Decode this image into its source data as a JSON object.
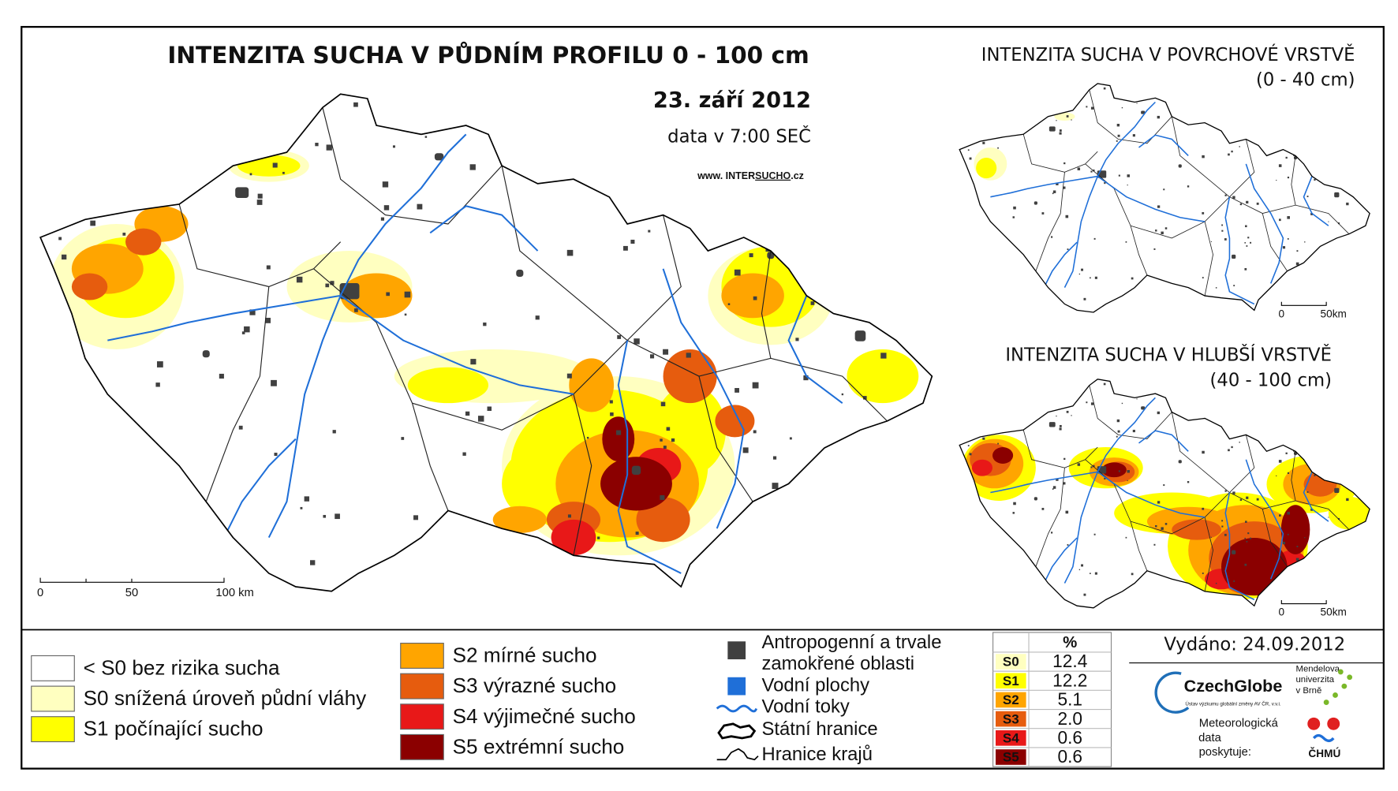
{
  "main_map": {
    "title": "INTENZITA SUCHA V PŮDNÍM PROFILU 0 - 100 cm",
    "date": "23. září 2012",
    "time": "data v 7:00 SEČ",
    "url": [
      "www. INTER",
      "SUCHO",
      ".cz"
    ],
    "scale": [
      "0",
      "50",
      "100 km"
    ]
  },
  "inset_top": {
    "title": "INTENZITA SUCHA V POVRCHOVÉ VRSTVĚ",
    "subtitle": "(0 - 40 cm)",
    "scale": [
      "0",
      "50km"
    ]
  },
  "inset_bottom": {
    "title": "INTENZITA SUCHA V HLUBŠÍ VRSTVĚ",
    "subtitle": "(40 - 100 cm)",
    "scale": [
      "0",
      "50km"
    ]
  },
  "legend": {
    "classes": [
      {
        "label": "< S0 bez rizika sucha",
        "color": "#ffffff"
      },
      {
        "label": "S0 snížená úroveň půdní vláhy",
        "color": "#ffffc0"
      },
      {
        "label": "S1 počínající sucho",
        "color": "#ffff00"
      },
      {
        "label": "S2 mírné sucho",
        "color": "#ffa500"
      },
      {
        "label": "S3 výrazné sucho",
        "color": "#e65c0e"
      },
      {
        "label": "S4 výjimečné sucho",
        "color": "#e81818"
      },
      {
        "label": "S5 extrémní sucho",
        "color": "#8b0000"
      }
    ],
    "symbols": [
      [
        "Antropogenní a trvale",
        "zamokřené oblasti"
      ],
      [
        "Vodní plochy"
      ],
      [
        "Vodní toky"
      ],
      [
        "Státní hranice"
      ],
      [
        "Hranice krajů"
      ]
    ]
  },
  "stats_table": {
    "header": "%",
    "rows": [
      [
        "S0",
        "12.4"
      ],
      [
        "S1",
        "12.2"
      ],
      [
        "S2",
        "5.1"
      ],
      [
        "S3",
        "2.0"
      ],
      [
        "S4",
        "0.6"
      ],
      [
        "S5",
        "0.6"
      ]
    ]
  },
  "footer": {
    "issued": "Vydáno: 24.09.2012",
    "czechglobe": "CzechGlobe",
    "czechglobe_sub": "Ústav výzkumu globální změny AV ČR, v.v.i.",
    "mendel": [
      "Mendelova",
      "univerzita",
      "v Brně"
    ],
    "provider": [
      "Meteorologická",
      "data",
      "poskytuje:"
    ],
    "chmu": "ČHMÚ"
  }
}
